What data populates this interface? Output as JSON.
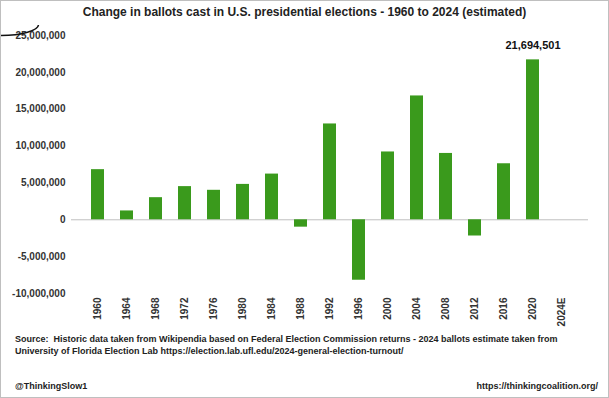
{
  "chart_data": {
    "type": "bar",
    "title": "Change in ballots cast in U.S. presidential elections - 1960 to 2024 (estimated)",
    "categories": [
      "1960",
      "1964",
      "1968",
      "1972",
      "1976",
      "1980",
      "1984",
      "1988",
      "1992",
      "1996",
      "2000",
      "2004",
      "2008",
      "2012",
      "2016",
      "2020",
      "2024E"
    ],
    "values": [
      6800000,
      1200000,
      3000000,
      4500000,
      4000000,
      4800000,
      6200000,
      -1000000,
      13000000,
      -8200000,
      9200000,
      16800000,
      9000000,
      -2200000,
      7600000,
      21694501,
      null
    ],
    "color": "#3a9a1c",
    "ylim": [
      -10000000,
      25000000
    ],
    "yticks": [
      {
        "value": -10000000,
        "label": "-10,000,000"
      },
      {
        "value": -5000000,
        "label": "-5,000,000"
      },
      0,
      {
        "value": 5000000,
        "label": "5,000,000"
      },
      {
        "value": 10000000,
        "label": "10,000,000"
      },
      {
        "value": 15000000,
        "label": "15,000,000"
      },
      {
        "value": 20000000,
        "label": "20,000,000"
      },
      {
        "value": 25000000,
        "label": "25,000,000"
      }
    ],
    "grid": false,
    "annotation": {
      "category": "2020",
      "value": 21694501,
      "label": "21,694,501"
    },
    "source": {
      "label": "Source:",
      "text": "Historic data taken from Wikipendia based on Federal Election Commission returns - 2024 ballots estimate taken from University of Florida Election Lab https://election.lab.ufl.edu/2024-general-election-turnout/"
    },
    "credit": "@ThinkingSlow1",
    "website": "https://thinkingcoalition.org/"
  }
}
